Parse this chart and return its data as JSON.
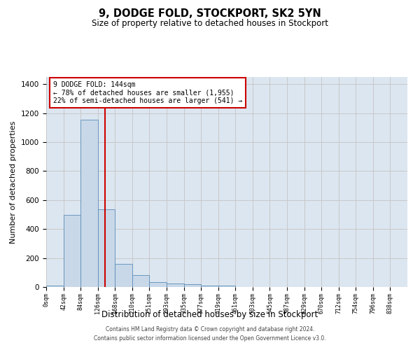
{
  "title": "9, DODGE FOLD, STOCKPORT, SK2 5YN",
  "subtitle": "Size of property relative to detached houses in Stockport",
  "xlabel": "Distribution of detached houses by size in Stockport",
  "ylabel": "Number of detached properties",
  "footer_line1": "Contains HM Land Registry data © Crown copyright and database right 2024.",
  "footer_line2": "Contains public sector information licensed under the Open Government Licence v3.0.",
  "bin_labels": [
    "0sqm",
    "42sqm",
    "84sqm",
    "126sqm",
    "168sqm",
    "210sqm",
    "251sqm",
    "293sqm",
    "335sqm",
    "377sqm",
    "419sqm",
    "461sqm",
    "503sqm",
    "545sqm",
    "587sqm",
    "629sqm",
    "670sqm",
    "712sqm",
    "754sqm",
    "796sqm",
    "838sqm"
  ],
  "bar_heights": [
    10,
    500,
    1155,
    535,
    160,
    82,
    35,
    25,
    20,
    10,
    10,
    0,
    0,
    0,
    0,
    0,
    0,
    0,
    0,
    0,
    0
  ],
  "bar_color": "#c8d8e8",
  "bar_edge_color": "#5b8db8",
  "grid_color": "#c8c8c8",
  "bg_color": "#dce6f0",
  "property_label": "9 DODGE FOLD: 144sqm",
  "annotation_line1": "← 78% of detached houses are smaller (1,955)",
  "annotation_line2": "22% of semi-detached houses are larger (541) →",
  "vline_color": "#cc0000",
  "annotation_box_color": "#ffffff",
  "annotation_border_color": "#cc0000",
  "ylim": [
    0,
    1450
  ],
  "yticks": [
    0,
    200,
    400,
    600,
    800,
    1000,
    1200,
    1400
  ],
  "property_sqm": 144,
  "bin_size_sqm": 42
}
